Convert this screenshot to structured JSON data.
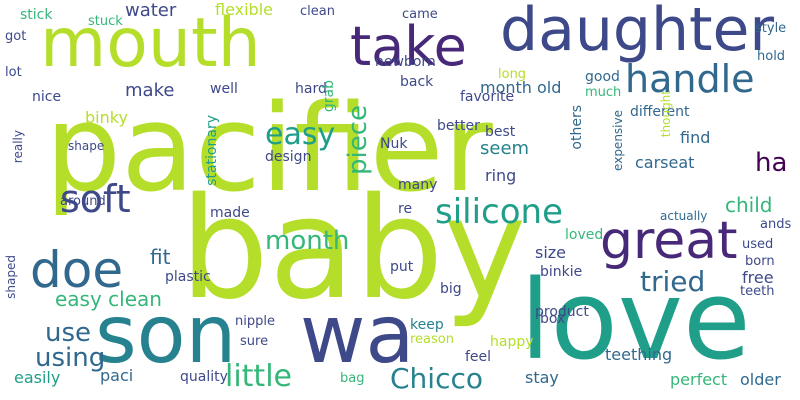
{
  "palette": {
    "yellow_green": "#b5de2b",
    "light_green": "#6ece58",
    "green": "#35b779",
    "teal": "#1f9e89",
    "blue_teal": "#26828e",
    "steel_blue": "#31688e",
    "indigo": "#3e4989",
    "purple": "#482878",
    "dark_purple": "#440154",
    "yellow": "#fde725"
  },
  "words": [
    {
      "text": "pacifier",
      "weight": 1.0
    },
    {
      "text": "baby",
      "weight": 0.95
    },
    {
      "text": "love",
      "weight": 0.72
    },
    {
      "text": "mouth",
      "weight": 0.6
    },
    {
      "text": "son",
      "weight": 0.6
    },
    {
      "text": "wa",
      "weight": 0.55
    },
    {
      "text": "daughter",
      "weight": 0.5
    },
    {
      "text": "great",
      "weight": 0.45
    },
    {
      "text": "take",
      "weight": 0.45
    },
    {
      "text": "doe",
      "weight": 0.42
    },
    {
      "text": "handle",
      "weight": 0.34
    },
    {
      "text": "soft",
      "weight": 0.34
    },
    {
      "text": "silicone",
      "weight": 0.3
    },
    {
      "text": "easy",
      "weight": 0.27
    },
    {
      "text": "use",
      "weight": 0.27
    },
    {
      "text": "Chicco",
      "weight": 0.26
    },
    {
      "text": "little",
      "weight": 0.26
    },
    {
      "text": "tried",
      "weight": 0.26
    },
    {
      "text": "month",
      "weight": 0.24
    },
    {
      "text": "using",
      "weight": 0.24
    },
    {
      "text": "piece",
      "weight": 0.24
    },
    {
      "text": "ha",
      "weight": 0.24
    },
    {
      "text": "easy clean",
      "weight": 0.2
    },
    {
      "text": "child",
      "weight": 0.19
    },
    {
      "text": "fit",
      "weight": 0.19
    },
    {
      "text": "make",
      "weight": 0.17
    },
    {
      "text": "seem",
      "weight": 0.17
    },
    {
      "text": "water",
      "weight": 0.17
    },
    {
      "text": "paci",
      "weight": 0.16
    },
    {
      "text": "stay",
      "weight": 0.16
    },
    {
      "text": "teething",
      "weight": 0.16
    },
    {
      "text": "perfect",
      "weight": 0.16
    },
    {
      "text": "older",
      "weight": 0.16
    },
    {
      "text": "easily",
      "weight": 0.16
    },
    {
      "text": "free",
      "weight": 0.15
    },
    {
      "text": "flexible",
      "weight": 0.15
    },
    {
      "text": "ring",
      "weight": 0.14
    },
    {
      "text": "binky",
      "weight": 0.14
    },
    {
      "text": "month old",
      "weight": 0.14
    },
    {
      "text": "carseat",
      "weight": 0.14
    },
    {
      "text": "size",
      "weight": 0.14
    },
    {
      "text": "find",
      "weight": 0.14
    },
    {
      "text": "made",
      "weight": 0.13
    },
    {
      "text": "loved",
      "weight": 0.13
    },
    {
      "text": "design",
      "weight": 0.13
    },
    {
      "text": "stick",
      "weight": 0.13
    },
    {
      "text": "product",
      "weight": 0.13
    },
    {
      "text": "keep",
      "weight": 0.12
    },
    {
      "text": "happy",
      "weight": 0.12
    },
    {
      "text": "box",
      "weight": 0.12
    },
    {
      "text": "binkie",
      "weight": 0.12
    },
    {
      "text": "feel",
      "weight": 0.12
    },
    {
      "text": "quality",
      "weight": 0.12
    },
    {
      "text": "hard",
      "weight": 0.12
    },
    {
      "text": "better",
      "weight": 0.12
    },
    {
      "text": "good",
      "weight": 0.12
    },
    {
      "text": "others",
      "weight": 0.11
    },
    {
      "text": "grab",
      "weight": 0.11
    },
    {
      "text": "nice",
      "weight": 0.11
    },
    {
      "text": "stationary",
      "weight": 0.11
    },
    {
      "text": "plastic",
      "weight": 0.11
    },
    {
      "text": "newborn",
      "weight": 0.11
    },
    {
      "text": "favorite",
      "weight": 0.11
    },
    {
      "text": "back",
      "weight": 0.11
    },
    {
      "text": "Nuk",
      "weight": 0.11
    },
    {
      "text": "best",
      "weight": 0.11
    },
    {
      "text": "different",
      "weight": 0.11
    },
    {
      "text": "well",
      "weight": 0.11
    },
    {
      "text": "many",
      "weight": 0.11
    },
    {
      "text": "re",
      "weight": 0.11
    },
    {
      "text": "put",
      "weight": 0.11
    },
    {
      "text": "big",
      "weight": 0.11
    },
    {
      "text": "reason",
      "weight": 0.1
    },
    {
      "text": "nipple",
      "weight": 0.1
    },
    {
      "text": "used",
      "weight": 0.1
    },
    {
      "text": "born",
      "weight": 0.1
    },
    {
      "text": "ands",
      "weight": 0.1
    },
    {
      "text": "teeth",
      "weight": 0.1
    },
    {
      "text": "clean",
      "weight": 0.1
    },
    {
      "text": "came",
      "weight": 0.1
    },
    {
      "text": "much",
      "weight": 0.1
    },
    {
      "text": "style",
      "weight": 0.1
    },
    {
      "text": "hold",
      "weight": 0.1
    },
    {
      "text": "bag",
      "weight": 0.1
    },
    {
      "text": "sure",
      "weight": 0.1
    },
    {
      "text": "around",
      "weight": 0.1
    },
    {
      "text": "shaped",
      "weight": 0.1
    },
    {
      "text": "really",
      "weight": 0.1
    },
    {
      "text": "lot",
      "weight": 0.1
    },
    {
      "text": "got",
      "weight": 0.1
    },
    {
      "text": "stuck",
      "weight": 0.1
    },
    {
      "text": "long",
      "weight": 0.1
    },
    {
      "text": "actually",
      "weight": 0.1
    },
    {
      "text": "expensive",
      "weight": 0.1
    },
    {
      "text": "thought",
      "weight": 0.1
    },
    {
      "text": "shape",
      "weight": 0.1
    }
  ]
}
